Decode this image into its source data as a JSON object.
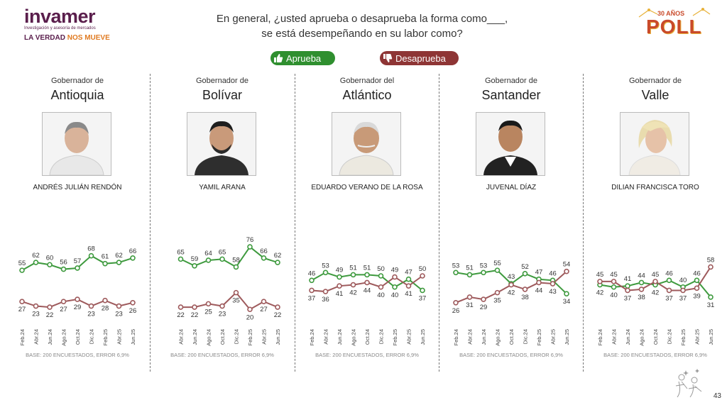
{
  "header": {
    "logo_name": "invamer",
    "logo_subtitle": "Investigación y asesoría de mercados",
    "logo_tagline_a": "LA VERDAD ",
    "logo_tagline_b": "NOS MUEVE",
    "question_line1": "En general, ¿usted aprueba o desaprueba la forma como___,",
    "question_line2": "se está desempeñando en su labor como?",
    "poll_years": "30 AÑOS",
    "poll_word": "POLL"
  },
  "legend": {
    "approve_label": "Aprueba",
    "disapprove_label": "Desaprueba"
  },
  "colors": {
    "approve": "#3e9a3e",
    "disapprove": "#9e5a5c",
    "approve_button": "#2f8f2f",
    "disapprove_button": "#8e3535"
  },
  "panels": [
    {
      "prefix": "Gobernador de",
      "department": "Antioquia",
      "name": "ANDRÉS JULIÁN RENDÓN",
      "base": "BASE: 200 ENCUESTADOS, ERROR 6,9%"
    },
    {
      "prefix": "Gobernador de",
      "department": "Bolívar",
      "name": "YAMIL ARANA",
      "base": "BASE: 200 ENCUESTADOS, ERROR 6,9%"
    },
    {
      "prefix": "Gobernador del",
      "department": "Atlántico",
      "name": "EDUARDO VERANO DE LA ROSA",
      "base": "BASE: 200 ENCUESTADOS, ERROR 6,9%"
    },
    {
      "prefix": "Gobernador de",
      "department": "Santander",
      "name": "JUVENAL DÍAZ",
      "base": "BASE: 200 ENCUESTADOS, ERROR 6,9%"
    },
    {
      "prefix": "Gobernador de",
      "department": "Valle",
      "name": "DILIAN FRANCISCA TORO",
      "base": "BASE: 200 ENCUESTADOS, ERROR 6,9%"
    }
  ],
  "chart_data": [
    {
      "type": "line",
      "title": "Antioquia",
      "categories": [
        "Feb.24",
        "Abr.24",
        "Jun.24",
        "Ago.24",
        "Oct.24",
        "Dic.24",
        "Feb.25",
        "Abr.25",
        "Jun.25"
      ],
      "series": [
        {
          "name": "Aprueba",
          "values": [
            55,
            62,
            60,
            56,
            57,
            68,
            61,
            62,
            66
          ]
        },
        {
          "name": "Desaprueba",
          "values": [
            27,
            23,
            22,
            27,
            29,
            23,
            28,
            23,
            26
          ]
        }
      ],
      "ylim": [
        10,
        90
      ]
    },
    {
      "type": "line",
      "title": "Bolívar",
      "categories": [
        "Abr.24",
        "Jun.24",
        "Ago.24",
        "Oct.24",
        "Dic.24",
        "Feb.25",
        "Abr.25",
        "Jun.25"
      ],
      "series": [
        {
          "name": "Aprueba",
          "values": [
            65,
            59,
            64,
            65,
            58,
            76,
            66,
            62
          ]
        },
        {
          "name": "Desaprueba",
          "values": [
            22,
            22,
            25,
            23,
            35,
            20,
            27,
            22
          ]
        }
      ],
      "ylim": [
        10,
        90
      ]
    },
    {
      "type": "line",
      "title": "Atlántico",
      "categories": [
        "Feb.24",
        "Abr.24",
        "Jun.24",
        "Ago.24",
        "Oct.24",
        "Dic.24",
        "Feb.25",
        "Abr.25",
        "Jun.25"
      ],
      "series": [
        {
          "name": "Aprueba",
          "values": [
            46,
            53,
            49,
            51,
            51,
            50,
            40,
            47,
            37
          ]
        },
        {
          "name": "Desaprueba",
          "values": [
            37,
            36,
            41,
            42,
            44,
            40,
            49,
            41,
            50
          ]
        }
      ],
      "ylim": [
        10,
        90
      ]
    },
    {
      "type": "line",
      "title": "Santander",
      "categories": [
        "Feb.24",
        "Abr.24",
        "Jun.24",
        "Ago.24",
        "Oct.24",
        "Dic.24",
        "Feb.25",
        "Abr.25",
        "Jun.25"
      ],
      "series": [
        {
          "name": "Aprueba",
          "values": [
            53,
            51,
            53,
            55,
            43,
            52,
            47,
            46,
            34
          ]
        },
        {
          "name": "Desaprueba",
          "values": [
            26,
            31,
            29,
            35,
            42,
            38,
            44,
            43,
            54
          ]
        }
      ],
      "ylim": [
        10,
        90
      ]
    },
    {
      "type": "line",
      "title": "Valle",
      "categories": [
        "Feb.24",
        "Abr.24",
        "Jun.24",
        "Ago.24",
        "Oct.24",
        "Dic.24",
        "Feb.25",
        "Abr.25",
        "Jun.25"
      ],
      "series": [
        {
          "name": "Aprueba",
          "values": [
            42,
            40,
            41,
            44,
            42,
            46,
            40,
            46,
            31
          ]
        },
        {
          "name": "Desaprueba",
          "values": [
            45,
            45,
            37,
            38,
            45,
            37,
            37,
            39,
            58
          ]
        }
      ],
      "ylim": [
        10,
        90
      ]
    }
  ],
  "footer": {
    "page_number": "43"
  }
}
